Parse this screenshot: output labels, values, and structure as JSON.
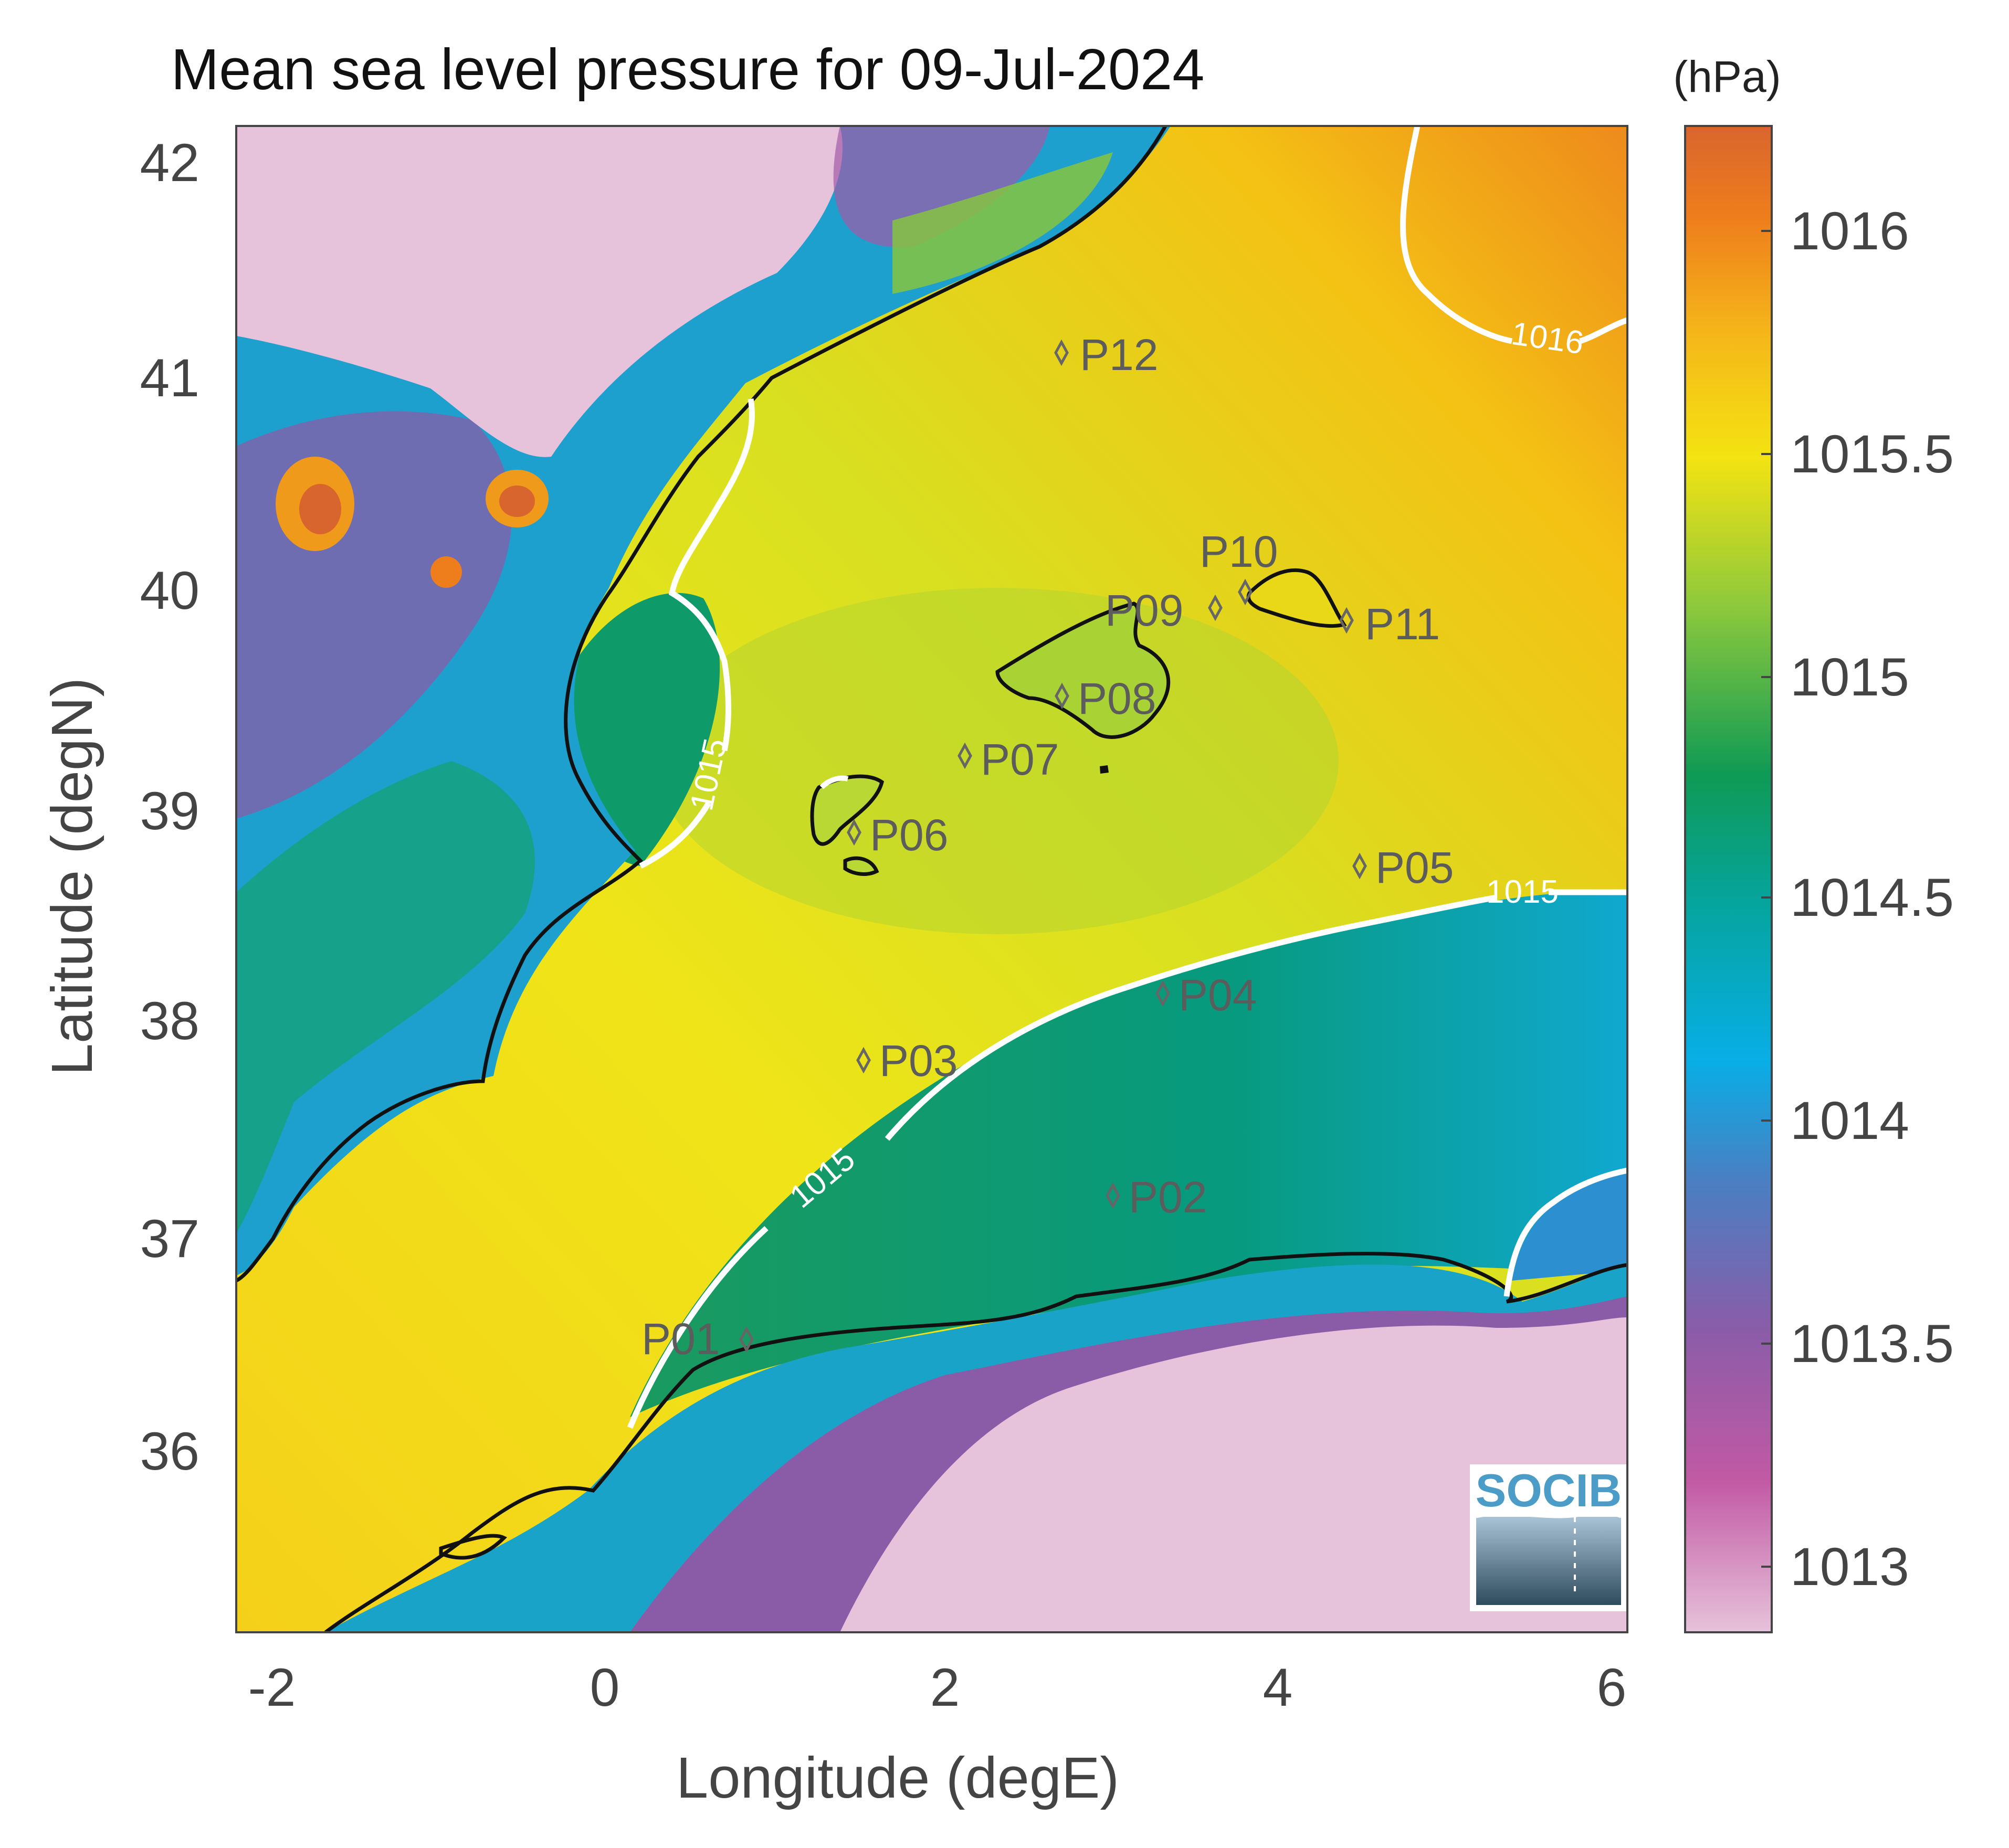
{
  "title": "Mean sea level pressure for 09-Jul-2024",
  "x_axis": {
    "label": "Longitude (degE)",
    "ticks": [
      "-2",
      "0",
      "2",
      "4",
      "6"
    ]
  },
  "y_axis": {
    "label": "Latitude (degN)",
    "ticks": [
      "36",
      "37",
      "38",
      "39",
      "40",
      "41",
      "42"
    ]
  },
  "colorbar": {
    "unit": "(hPa)",
    "ticks": [
      "1013",
      "1013.5",
      "1014",
      "1014.5",
      "1015",
      "1015.5",
      "1016"
    ],
    "range": [
      1012.85,
      1016.23
    ],
    "colors": [
      "#e6c3da",
      "#c25aa4",
      "#8a5ca8",
      "#2d9fe0",
      "#05a5a0",
      "#0f9a55",
      "#8cc83c",
      "#f3e312",
      "#f5b81a",
      "#ee7d1c",
      "#d9652e"
    ]
  },
  "contours": [
    {
      "label": "1016",
      "value": 1016
    },
    {
      "label": "1015",
      "value": 1015
    },
    {
      "label": "1015",
      "value": 1015
    },
    {
      "label": "1015",
      "value": 1015
    }
  ],
  "points": [
    {
      "label": "P01",
      "lon": 0.85,
      "lat": 36.5
    },
    {
      "label": "P02",
      "lon": 3.0,
      "lat": 37.15
    },
    {
      "label": "P03",
      "lon": 1.55,
      "lat": 37.8
    },
    {
      "label": "P04",
      "lon": 3.3,
      "lat": 38.1
    },
    {
      "label": "P05",
      "lon": 4.5,
      "lat": 38.7
    },
    {
      "label": "P06",
      "lon": 1.5,
      "lat": 38.85
    },
    {
      "label": "P07",
      "lon": 2.15,
      "lat": 39.2
    },
    {
      "label": "P08",
      "lon": 2.7,
      "lat": 39.5
    },
    {
      "label": "P09",
      "lon": 3.6,
      "lat": 39.9
    },
    {
      "label": "P10",
      "lon": 3.8,
      "lat": 40.0
    },
    {
      "label": "P11",
      "lon": 4.4,
      "lat": 39.85
    },
    {
      "label": "P12",
      "lon": 2.7,
      "lat": 41.1
    }
  ],
  "logo": {
    "text": "SOCIB"
  }
}
